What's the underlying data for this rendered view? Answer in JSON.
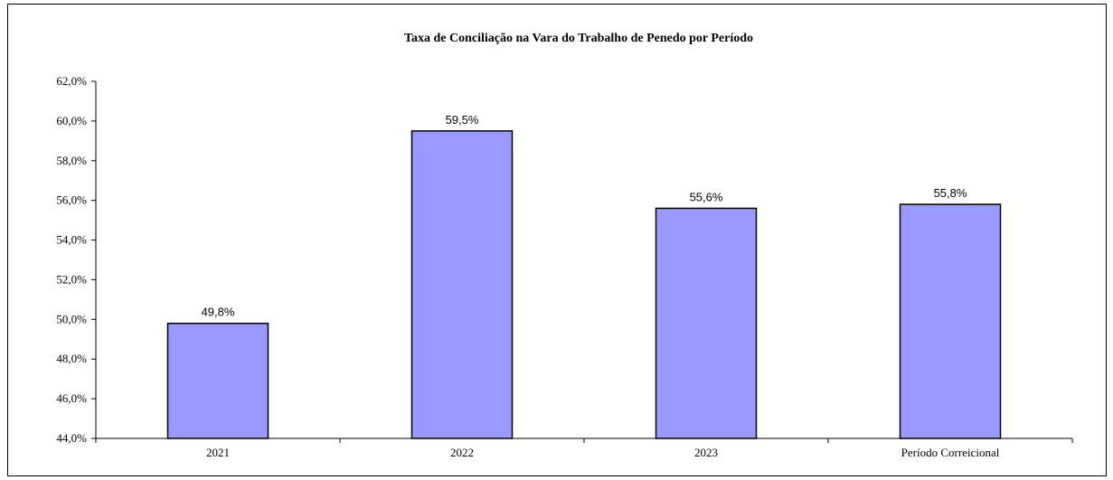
{
  "chart_data": {
    "type": "bar",
    "title": "Taxa de Conciliação na Vara do Trabalho de Penedo por Período",
    "xlabel": "",
    "ylabel": "",
    "categories": [
      "2021",
      "2022",
      "2023",
      "Período Correicional"
    ],
    "values": [
      49.8,
      59.5,
      55.6,
      55.8
    ],
    "data_labels": [
      "49,8%",
      "59,5%",
      "55,6%",
      "55,8%"
    ],
    "ylim": [
      44.0,
      62.0
    ],
    "yticks": [
      44.0,
      46.0,
      48.0,
      50.0,
      52.0,
      54.0,
      56.0,
      58.0,
      60.0,
      62.0
    ],
    "ytick_labels": [
      "44,0%",
      "46,0%",
      "48,0%",
      "50,0%",
      "52,0%",
      "54,0%",
      "56,0%",
      "58,0%",
      "60,0%",
      "62,0%"
    ],
    "grid": false,
    "legend": "none",
    "colors": {
      "bar_fill": "#9999ff",
      "bar_stroke": "#000000",
      "axis": "#000000"
    }
  }
}
